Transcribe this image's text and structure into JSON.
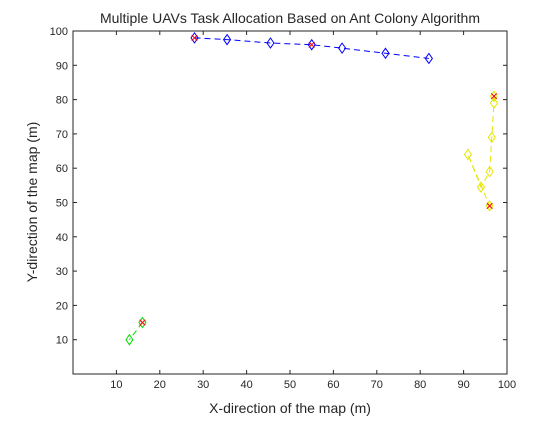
{
  "chart_data": {
    "type": "line",
    "title": "Multiple UAVs Task Allocation Based on Ant Colony Algorithm",
    "xlabel": "X-direction of the map (m)",
    "ylabel": "Y-direction of the map (m)",
    "xlim": [
      0,
      100
    ],
    "ylim": [
      0,
      100
    ],
    "xticks": [
      10,
      20,
      30,
      40,
      50,
      60,
      70,
      80,
      90,
      100
    ],
    "yticks": [
      10,
      20,
      30,
      40,
      50,
      60,
      70,
      80,
      90,
      100
    ],
    "grid": false,
    "series": [
      {
        "color": "#0000ff",
        "linestyle": "dashed",
        "marker": "diamond",
        "x": [
          28,
          35.5,
          45.5,
          55,
          62,
          72,
          82
        ],
        "y": [
          98,
          97.5,
          96.5,
          96,
          95,
          93.5,
          92
        ],
        "endpoints": [
          [
            28,
            98
          ],
          [
            55,
            96
          ]
        ]
      },
      {
        "color": "#e6e600",
        "linestyle": "dashed",
        "marker": "diamond",
        "x": [
          97,
          97,
          96.5,
          96,
          94,
          91,
          96
        ],
        "y": [
          81,
          79,
          69,
          59,
          54.5,
          64,
          49
        ],
        "endpoints": [
          [
            97,
            81
          ],
          [
            96,
            49
          ]
        ]
      },
      {
        "color": "#00dd00",
        "linestyle": "dashed",
        "marker": "diamond",
        "x": [
          16,
          13
        ],
        "y": [
          15,
          10
        ],
        "endpoints": [
          [
            16,
            15
          ]
        ]
      }
    ],
    "endpoint_marker": {
      "shape": "cross",
      "color": "#ff0000"
    }
  }
}
